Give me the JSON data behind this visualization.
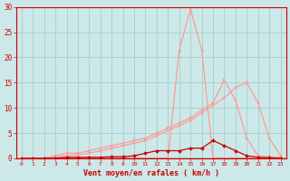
{
  "x": [
    0,
    1,
    2,
    3,
    4,
    5,
    6,
    7,
    8,
    9,
    10,
    11,
    12,
    13,
    14,
    15,
    16,
    17,
    18,
    19,
    20,
    21,
    22,
    23
  ],
  "line_peak_y": [
    0,
    0,
    0,
    0,
    0,
    0,
    0,
    0,
    0,
    0,
    0,
    0,
    0,
    0,
    21.5,
    29.5,
    21.5,
    0,
    0,
    0,
    0,
    0,
    0,
    0
  ],
  "line_diag1_y": [
    0,
    0,
    0,
    0.5,
    1,
    1,
    1.5,
    2,
    2.5,
    3,
    3.5,
    4,
    5,
    6,
    7,
    8,
    9.5,
    11,
    15.5,
    11.5,
    4,
    0.5,
    0.3,
    0.2
  ],
  "line_diag2_y": [
    0,
    0,
    0,
    0.2,
    0.5,
    0.7,
    1,
    1.5,
    2,
    2.5,
    3,
    3.5,
    4.5,
    5.5,
    6.5,
    7.5,
    9,
    10.5,
    12,
    14,
    15,
    11,
    4,
    0.5
  ],
  "line_bell_y": [
    0,
    0,
    0,
    0,
    0.2,
    0.2,
    0.2,
    0.2,
    0.3,
    0.3,
    0.5,
    1,
    1.5,
    1.5,
    1.5,
    2,
    2,
    3.5,
    2.5,
    1.5,
    0.5,
    0.2,
    0.1,
    0
  ],
  "color_light": "#ff9999",
  "color_dark": "#cc0000",
  "bg_color": "#cce8e8",
  "grid_color": "#99cccc",
  "axis_color": "#cc0000",
  "xlabel": "Vent moyen/en rafales ( km/h )",
  "ylim": [
    0,
    30
  ],
  "xlim": [
    -0.5,
    23.5
  ],
  "yticks": [
    0,
    5,
    10,
    15,
    20,
    25,
    30
  ]
}
